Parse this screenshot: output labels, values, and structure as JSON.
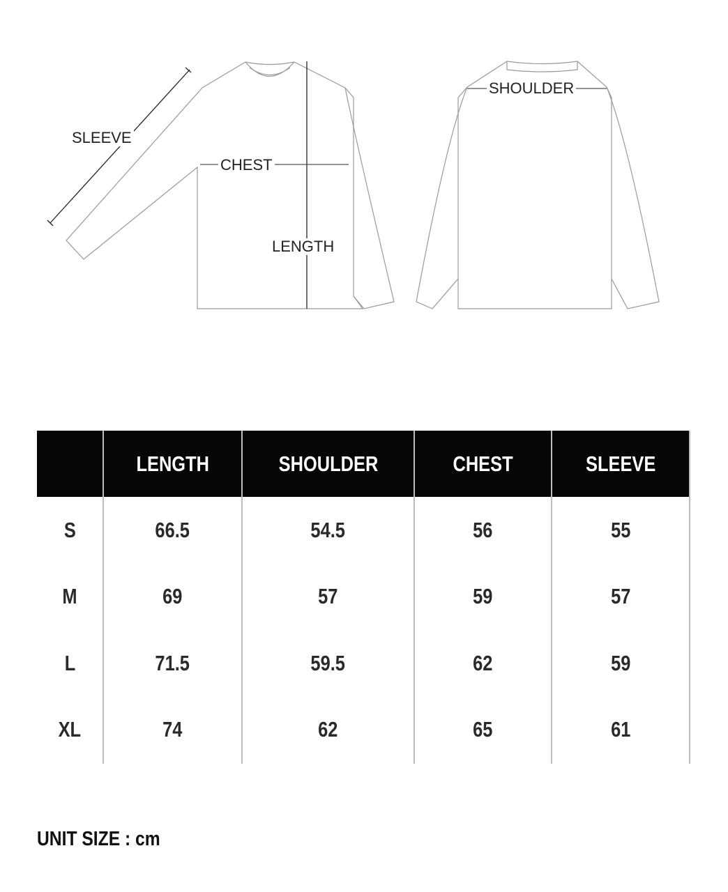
{
  "diagram": {
    "labels": {
      "sleeve": "SLEEVE",
      "chest": "CHEST",
      "length": "LENGTH",
      "shoulder": "SHOULDER"
    }
  },
  "table": {
    "headers": [
      "",
      "LENGTH",
      "SHOULDER",
      "CHEST",
      "SLEEVE"
    ],
    "rows": [
      {
        "size": "S",
        "values": [
          "66.5",
          "54.5",
          "56",
          "55"
        ]
      },
      {
        "size": "M",
        "values": [
          "69",
          "57",
          "59",
          "57"
        ]
      },
      {
        "size": "L",
        "values": [
          "71.5",
          "59.5",
          "62",
          "59"
        ]
      },
      {
        "size": "XL",
        "values": [
          "74",
          "62",
          "65",
          "61"
        ]
      }
    ]
  },
  "footer": {
    "unit": "UNIT SIZE : cm"
  }
}
